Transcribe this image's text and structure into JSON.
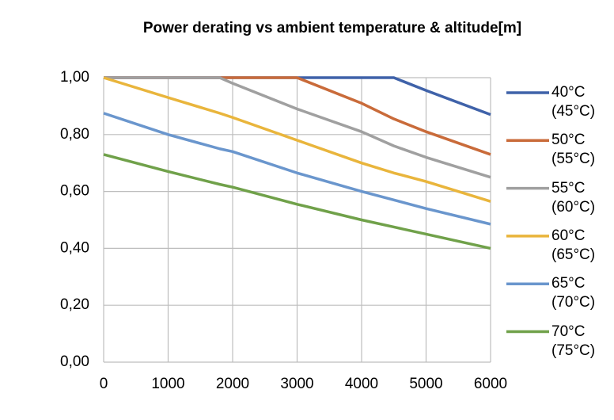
{
  "chart_data": {
    "type": "line",
    "title": "Power derating vs ambient temperature & altitude[m]",
    "x": [
      0,
      1000,
      1800,
      2000,
      3000,
      4000,
      4500,
      5000,
      6000
    ],
    "series": [
      {
        "name": "40°C (45°C)",
        "color": "#3f62a9",
        "values": [
          1,
          1,
          1,
          1,
          1,
          1,
          1,
          0.955,
          0.87
        ]
      },
      {
        "name": "50°C (55°C)",
        "color": "#c96b3a",
        "values": [
          1,
          1,
          1,
          1,
          1,
          0.91,
          0.855,
          0.81,
          0.73
        ]
      },
      {
        "name": "55°C (60°C)",
        "color": "#a0a0a0",
        "values": [
          1,
          1,
          1,
          0.98,
          0.89,
          0.81,
          0.76,
          0.72,
          0.65
        ]
      },
      {
        "name": "60°C (65°C)",
        "color": "#e9b53c",
        "values": [
          1,
          0.93,
          0.875,
          0.86,
          0.78,
          0.7,
          0.665,
          0.635,
          0.565
        ]
      },
      {
        "name": "65°C (70°C)",
        "color": "#6a96cd",
        "values": [
          0.875,
          0.8,
          0.75,
          0.74,
          0.665,
          0.6,
          0.57,
          0.54,
          0.485
        ]
      },
      {
        "name": "70°C (75°C)",
        "color": "#70a14a",
        "values": [
          0.73,
          0.67,
          0.625,
          0.615,
          0.555,
          0.5,
          0.475,
          0.45,
          0.4
        ]
      }
    ],
    "xlim": [
      0,
      6000
    ],
    "xticks": [
      0,
      1000,
      2000,
      3000,
      4000,
      5000,
      6000
    ],
    "ylim": [
      0,
      1
    ],
    "yticks": [
      {
        "value": 0,
        "label": "0,00"
      },
      {
        "value": 0.2,
        "label": "0,20"
      },
      {
        "value": 0.4,
        "label": "0,40"
      },
      {
        "value": 0.6,
        "label": "0,60"
      },
      {
        "value": 0.8,
        "label": "0,80"
      },
      {
        "value": 1,
        "label": "1,00"
      }
    ],
    "grid": true,
    "legend": "right"
  }
}
